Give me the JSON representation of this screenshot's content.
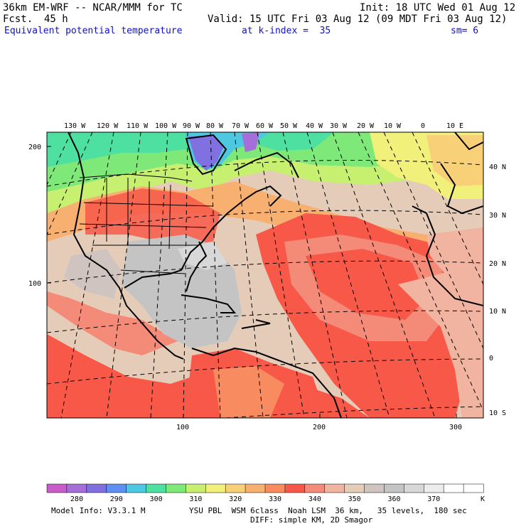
{
  "header": {
    "model": "36km EM-WRF -- NCAR/MMM for TC",
    "init": "Init: 18 UTC Wed 01 Aug 12",
    "fcst_label": "Fcst.",
    "fcst_value": "45 h",
    "valid": "Valid: 15 UTC Fri 03 Aug 12 (09 MDT Fri 03 Aug 12)",
    "field": "Equivalent potential temperature",
    "level": "at k-index =  35",
    "sm": "sm= 6"
  },
  "map": {
    "lon_labels": [
      "130 W",
      "120 W",
      "110 W",
      "100 W",
      "90 W",
      "80 W",
      "70 W",
      "60 W",
      "50 W",
      "40 W",
      "30 W",
      "20 W",
      "10 W",
      "0",
      "10 E"
    ],
    "lat_labels": [
      "40 N",
      "30 N",
      "20 N",
      "10 N",
      "0",
      "10 S"
    ],
    "grid_x_labels": [
      "100",
      "200",
      "300"
    ],
    "grid_y_labels": [
      "200",
      "100"
    ]
  },
  "colorbar": {
    "labels": [
      "280",
      "290",
      "300",
      "310",
      "320",
      "330",
      "340",
      "350",
      "360",
      "370"
    ],
    "unit": "K",
    "colors": [
      "#c85cc8",
      "#a56ed8",
      "#8070e0",
      "#5f8ff0",
      "#4ec8e0",
      "#4ee0a0",
      "#7ee878",
      "#c8f070",
      "#f0f07a",
      "#f8d078",
      "#f8b070",
      "#f88c60",
      "#f85848",
      "#f48a78",
      "#f0b4a0",
      "#e4ccb8",
      "#d0c4c0",
      "#c4c4c4",
      "#d8d8d8",
      "#ececec",
      "#ffffff",
      "#ffffff"
    ]
  },
  "footer": {
    "model_info": "Model Info: V3.3.1 M",
    "physics": "YSU PBL  WSM 6class  Noah LSM  36 km,   35 levels,  180 sec",
    "diff": "DIFF: simple KM, 2D Smagor"
  }
}
